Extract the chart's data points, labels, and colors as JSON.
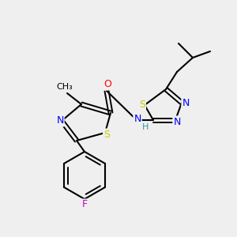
{
  "background_color": "#efefef",
  "bond_color": "#000000",
  "atom_colors": {
    "N": "#0000ff",
    "S": "#cccc00",
    "O": "#ff0000",
    "F": "#cc00cc",
    "C": "#000000",
    "H": "#339999"
  },
  "figsize": [
    3.0,
    3.0
  ],
  "dpi": 100
}
